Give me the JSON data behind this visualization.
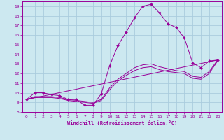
{
  "title": "",
  "xlabel": "Windchill (Refroidissement éolien,°C)",
  "xlim": [
    -0.5,
    23.5
  ],
  "ylim": [
    8,
    19.5
  ],
  "xticks": [
    0,
    1,
    2,
    3,
    4,
    5,
    6,
    7,
    8,
    9,
    10,
    11,
    12,
    13,
    14,
    15,
    16,
    17,
    18,
    19,
    20,
    21,
    22,
    23
  ],
  "yticks": [
    8,
    9,
    10,
    11,
    12,
    13,
    14,
    15,
    16,
    17,
    18,
    19
  ],
  "bg_color": "#cce8f0",
  "line_color": "#990099",
  "grid_color": "#aaccdd",
  "line1_x": [
    0,
    1,
    2,
    3,
    4,
    5,
    6,
    7,
    8,
    9,
    10,
    11,
    12,
    13,
    14,
    15,
    16,
    17,
    18,
    19,
    20,
    21,
    22,
    23
  ],
  "line1_y": [
    9.3,
    10.0,
    10.0,
    9.8,
    9.7,
    9.3,
    9.3,
    8.7,
    8.7,
    9.9,
    12.8,
    14.9,
    16.3,
    17.8,
    19.0,
    19.2,
    18.3,
    17.2,
    16.8,
    15.7,
    13.1,
    12.6,
    13.3,
    13.4
  ],
  "line2_x": [
    0,
    1,
    2,
    3,
    4,
    5,
    6,
    7,
    8,
    9,
    10,
    11,
    12,
    13,
    14,
    15,
    16,
    17,
    18,
    19,
    20,
    21,
    22,
    23
  ],
  "line2_y": [
    9.3,
    9.5,
    9.5,
    9.5,
    9.4,
    9.2,
    9.1,
    9.0,
    8.9,
    9.2,
    10.3,
    11.2,
    11.8,
    12.3,
    12.6,
    12.7,
    12.4,
    12.2,
    12.1,
    12.0,
    11.5,
    11.4,
    12.0,
    13.3
  ],
  "line3_x": [
    0,
    1,
    2,
    3,
    4,
    5,
    6,
    7,
    8,
    9,
    10,
    11,
    12,
    13,
    14,
    15,
    16,
    17,
    18,
    19,
    20,
    21,
    22,
    23
  ],
  "line3_y": [
    9.3,
    9.6,
    9.6,
    9.6,
    9.5,
    9.3,
    9.2,
    9.1,
    9.0,
    9.3,
    10.5,
    11.4,
    12.0,
    12.6,
    12.9,
    13.0,
    12.7,
    12.5,
    12.3,
    12.2,
    11.7,
    11.6,
    12.2,
    13.4
  ],
  "line4_x": [
    0,
    23
  ],
  "line4_y": [
    9.3,
    13.4
  ]
}
